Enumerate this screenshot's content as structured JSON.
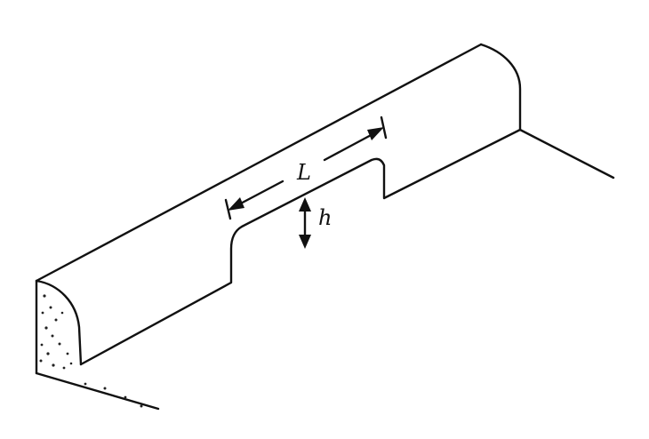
{
  "labels": {
    "length": "L",
    "height": "h"
  },
  "colors": {
    "line": "#111111",
    "background": "#ffffff"
  }
}
